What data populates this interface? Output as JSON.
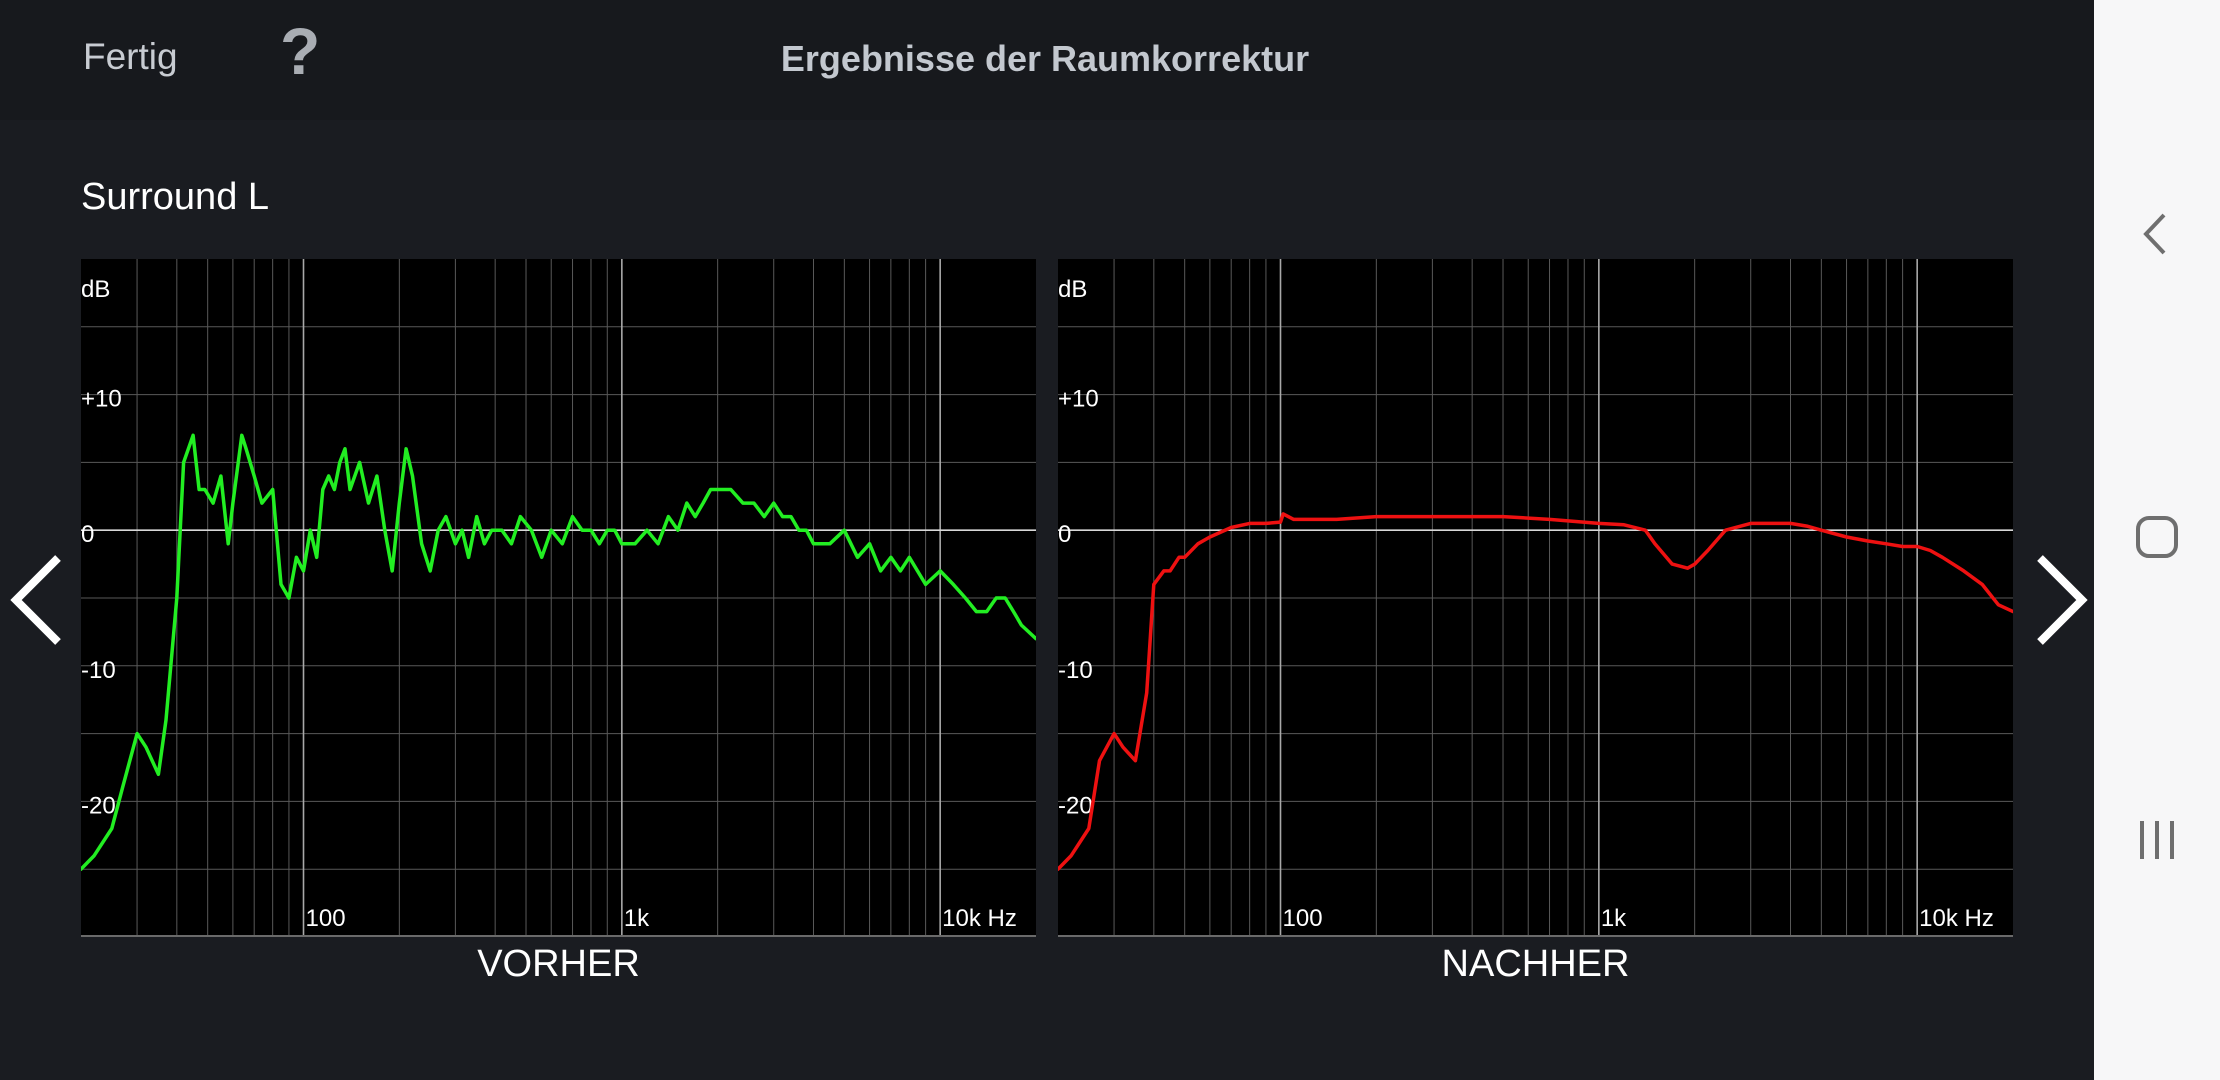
{
  "header": {
    "done_label": "Fertig",
    "help_label": "?",
    "title": "Ergebnisse der Raumkorrektur"
  },
  "channel": "Surround L",
  "graph_axis": {
    "y_unit": "dB",
    "y_ticks": [
      "+10",
      "0",
      "-10",
      "-20"
    ],
    "x_ticks": [
      "100",
      "1k",
      "10k Hz"
    ]
  },
  "icons": {
    "prev": "chevron-left-icon",
    "next": "chevron-right-icon",
    "sys_back": "back-icon",
    "sys_home": "home-icon",
    "sys_recents": "recents-icon"
  },
  "colors": {
    "before_curve": "#22ee22",
    "after_curve": "#ee1111",
    "grid": "#595959",
    "zero_line": "#d8d8d8"
  },
  "chart_data": [
    {
      "type": "line",
      "label": "VORHER",
      "ylabel": "dB",
      "x_scale": "log",
      "xlim": [
        20,
        20000
      ],
      "ylim": [
        -30,
        20
      ],
      "x_ticks": [
        100,
        1000,
        10000
      ],
      "y_ticks": [
        10,
        0,
        -10,
        -20
      ],
      "grid": true,
      "series": [
        {
          "x": [
            20,
            22,
            25,
            27,
            30,
            32,
            35,
            37,
            40,
            42,
            45,
            47,
            49,
            52,
            55,
            58,
            60,
            64,
            66,
            70,
            74,
            80,
            85,
            90,
            95,
            100,
            105,
            110,
            115,
            120,
            125,
            130,
            135,
            140,
            150,
            160,
            170,
            180,
            190,
            200,
            210,
            220,
            235,
            250,
            265,
            280,
            300,
            315,
            330,
            350,
            370,
            390,
            420,
            450,
            480,
            520,
            560,
            600,
            650,
            700,
            750,
            800,
            850,
            900,
            950,
            1000,
            1100,
            1200,
            1300,
            1400,
            1500,
            1600,
            1700,
            1800,
            1900,
            2000,
            2200,
            2400,
            2600,
            2800,
            3000,
            3200,
            3400,
            3600,
            3800,
            4000,
            4500,
            5000,
            5500,
            6000,
            6500,
            7000,
            7500,
            8000,
            9000,
            10000,
            11000,
            12000,
            13000,
            14000,
            15000,
            16000,
            17000,
            18000,
            20000
          ],
          "y": [
            -25,
            -24,
            -22,
            -19,
            -15,
            -16,
            -18,
            -14,
            -5,
            5,
            7,
            3,
            3,
            2,
            4,
            -1,
            2,
            7,
            6,
            4,
            2,
            3,
            -4,
            -5,
            -2,
            -3,
            0,
            -2,
            3,
            4,
            3,
            5,
            6,
            3,
            5,
            2,
            4,
            0,
            -3,
            2,
            6,
            4,
            -1,
            -3,
            0,
            1,
            -1,
            0,
            -2,
            1,
            -1,
            0,
            0,
            -1,
            1,
            0,
            -2,
            0,
            -1,
            1,
            0,
            0,
            -1,
            0,
            0,
            -1,
            -1,
            0,
            -1,
            1,
            0,
            2,
            1,
            2,
            3,
            3,
            3,
            2,
            2,
            1,
            2,
            1,
            1,
            0,
            0,
            -1,
            -1,
            0,
            -2,
            -1,
            -3,
            -2,
            -3,
            -2,
            -4,
            -3,
            -4,
            -5,
            -6,
            -6,
            -5,
            -5,
            -6,
            -7,
            -8
          ]
        }
      ]
    },
    {
      "type": "line",
      "label": "NACHHER",
      "ylabel": "dB",
      "x_scale": "log",
      "xlim": [
        20,
        20000
      ],
      "ylim": [
        -30,
        20
      ],
      "x_ticks": [
        100,
        1000,
        10000
      ],
      "y_ticks": [
        10,
        0,
        -10,
        -20
      ],
      "grid": true,
      "series": [
        {
          "x": [
            20,
            22,
            25,
            27,
            30,
            32,
            35,
            38,
            40,
            43,
            45,
            48,
            50,
            55,
            60,
            70,
            80,
            90,
            100,
            102,
            110,
            130,
            150,
            200,
            300,
            500,
            700,
            1000,
            1200,
            1400,
            1500,
            1700,
            1900,
            2000,
            2200,
            2500,
            3000,
            3500,
            4000,
            4500,
            5000,
            6000,
            7000,
            8000,
            9000,
            10000,
            11000,
            12000,
            14000,
            16000,
            18000,
            20000
          ],
          "y": [
            -25,
            -24,
            -22,
            -17,
            -15,
            -16,
            -17,
            -12,
            -4,
            -3,
            -3,
            -2,
            -2,
            -1,
            -0.5,
            0.2,
            0.5,
            0.5,
            0.6,
            1.2,
            0.8,
            0.8,
            0.8,
            1,
            1,
            1,
            0.8,
            0.5,
            0.4,
            0,
            -1,
            -2.5,
            -2.8,
            -2.5,
            -1.5,
            0,
            0.5,
            0.5,
            0.5,
            0.3,
            0,
            -0.5,
            -0.8,
            -1,
            -1.2,
            -1.2,
            -1.5,
            -2,
            -3,
            -4,
            -5.5,
            -6
          ]
        }
      ]
    }
  ]
}
